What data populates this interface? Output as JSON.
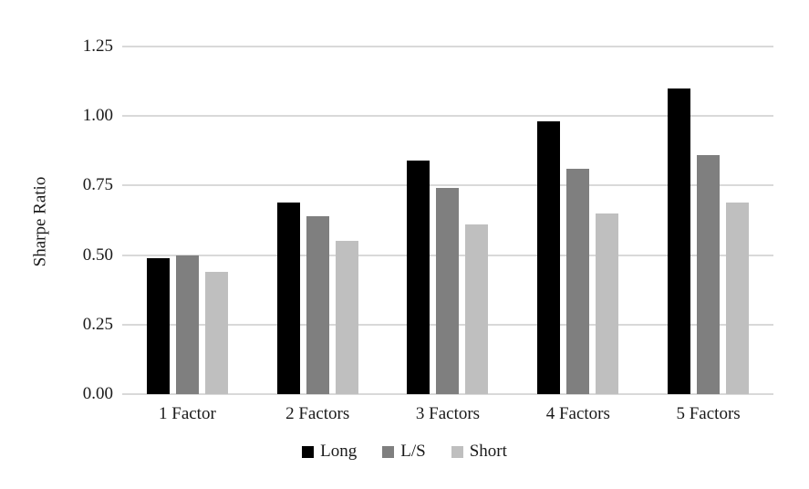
{
  "chart_data": {
    "type": "bar",
    "title": "",
    "xlabel": "",
    "ylabel": "Sharpe Ratio",
    "categories": [
      "1 Factor",
      "2 Factors",
      "3 Factors",
      "4 Factors",
      "5 Factors"
    ],
    "series": [
      {
        "name": "Long",
        "color": "#000000",
        "values": [
          0.49,
          0.69,
          0.84,
          0.98,
          1.1
        ]
      },
      {
        "name": "L/S",
        "color": "#7f7f7f",
        "values": [
          0.5,
          0.64,
          0.74,
          0.81,
          0.86
        ]
      },
      {
        "name": "Short",
        "color": "#bfbfbf",
        "values": [
          0.44,
          0.55,
          0.61,
          0.65,
          0.69
        ]
      }
    ],
    "ylim": [
      0,
      1.25
    ],
    "yticks": [
      0,
      0.25,
      0.5,
      0.75,
      1.0,
      1.25
    ],
    "ytick_labels": [
      "0.00",
      "0.25",
      "0.50",
      "0.75",
      "1.00",
      "1.25"
    ],
    "grid": true,
    "legend_position": "bottom",
    "colors": {
      "gridline": "#d9d9d9",
      "text": "#1a1a1a",
      "background": "#ffffff"
    }
  }
}
